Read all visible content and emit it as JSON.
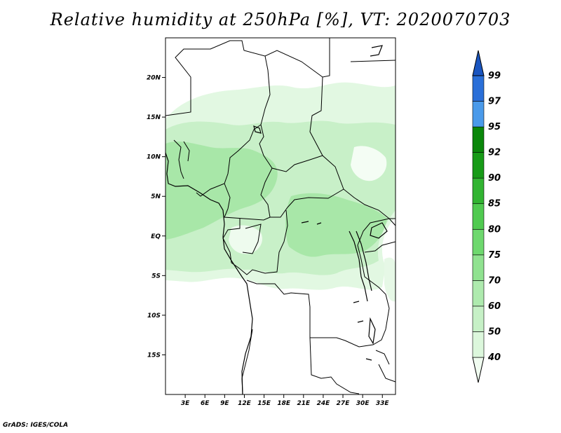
{
  "title": "Relative humidity at 250hPa [%], VT: 2020070703",
  "footer": "GrADS: IGES/COLA",
  "map": {
    "lon_range": [
      0,
      35
    ],
    "lat_range": [
      -20,
      25
    ],
    "lat_labels": [
      "20N",
      "15N",
      "10N",
      "5N",
      "EQ",
      "5S",
      "10S",
      "15S"
    ],
    "lon_labels": [
      "3E",
      "6E",
      "9E",
      "12E",
      "15E",
      "18E",
      "21E",
      "24E",
      "27E",
      "30E",
      "33E"
    ]
  },
  "colorbar": {
    "levels": [
      "40",
      "50",
      "60",
      "70",
      "75",
      "80",
      "85",
      "90",
      "92",
      "95",
      "97",
      "99"
    ],
    "colors": [
      "#f0fcf0",
      "#dcf7dc",
      "#c6f0c6",
      "#aeeaae",
      "#90e290",
      "#6ed86e",
      "#50ca50",
      "#32b432",
      "#179b17",
      "#0a870a",
      "#4a9aea",
      "#2a6fd8",
      "#1a55c0"
    ]
  }
}
